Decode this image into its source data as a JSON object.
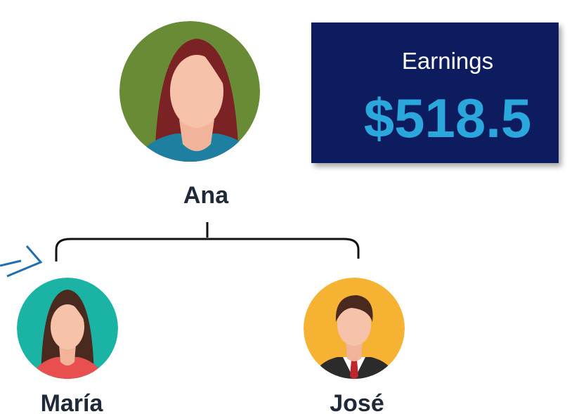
{
  "nodes": [
    {
      "label": "Ana"
    },
    {
      "label": "María"
    },
    {
      "label": "José"
    }
  ],
  "earnings": {
    "label": "Earnings",
    "value": "$518.5"
  }
}
